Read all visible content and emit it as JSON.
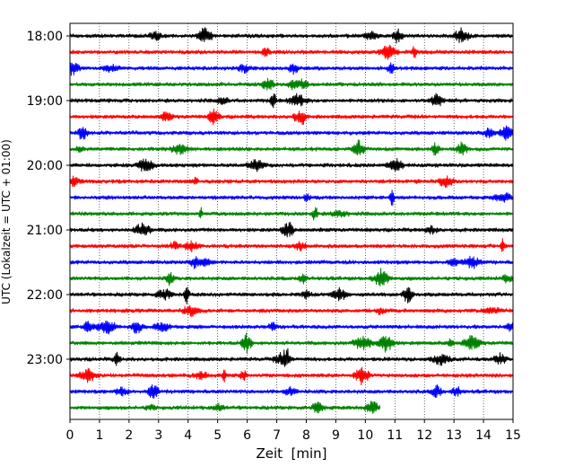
{
  "chart_data": {
    "type": "line",
    "title": "",
    "xlabel": "Zeit  [min]",
    "ylabel": "UTC (Lokalzeit = UTC + 01:00)",
    "xlim": [
      0,
      15
    ],
    "x_ticks": [
      "0",
      "1",
      "2",
      "3",
      "4",
      "5",
      "6",
      "7",
      "8",
      "9",
      "10",
      "11",
      "12",
      "13",
      "14",
      "15"
    ],
    "y_ticks": [
      {
        "label": "18:00",
        "row": 0
      },
      {
        "label": "19:00",
        "row": 4
      },
      {
        "label": "20:00",
        "row": 8
      },
      {
        "label": "21:00",
        "row": 12
      },
      {
        "label": "22:00",
        "row": 16
      },
      {
        "label": "23:00",
        "row": 20
      }
    ],
    "grid": "vertical dotted",
    "colors": [
      "#000000",
      "#ff0000",
      "#0000ff",
      "#008000"
    ],
    "series": [
      {
        "start": "18:00",
        "duration_min": 15,
        "color": "#000000"
      },
      {
        "start": "18:15",
        "duration_min": 15,
        "color": "#ff0000"
      },
      {
        "start": "18:30",
        "duration_min": 15,
        "color": "#0000ff"
      },
      {
        "start": "18:45",
        "duration_min": 15,
        "color": "#008000"
      },
      {
        "start": "19:00",
        "duration_min": 15,
        "color": "#000000"
      },
      {
        "start": "19:15",
        "duration_min": 15,
        "color": "#ff0000"
      },
      {
        "start": "19:30",
        "duration_min": 15,
        "color": "#0000ff"
      },
      {
        "start": "19:45",
        "duration_min": 15,
        "color": "#008000"
      },
      {
        "start": "20:00",
        "duration_min": 15,
        "color": "#000000"
      },
      {
        "start": "20:15",
        "duration_min": 15,
        "color": "#ff0000"
      },
      {
        "start": "20:30",
        "duration_min": 15,
        "color": "#0000ff"
      },
      {
        "start": "20:45",
        "duration_min": 15,
        "color": "#008000"
      },
      {
        "start": "21:00",
        "duration_min": 15,
        "color": "#000000"
      },
      {
        "start": "21:15",
        "duration_min": 15,
        "color": "#ff0000"
      },
      {
        "start": "21:30",
        "duration_min": 15,
        "color": "#0000ff"
      },
      {
        "start": "21:45",
        "duration_min": 15,
        "color": "#008000"
      },
      {
        "start": "22:00",
        "duration_min": 15,
        "color": "#000000"
      },
      {
        "start": "22:15",
        "duration_min": 15,
        "color": "#ff0000"
      },
      {
        "start": "22:30",
        "duration_min": 15,
        "color": "#0000ff"
      },
      {
        "start": "22:45",
        "duration_min": 15,
        "color": "#008000"
      },
      {
        "start": "23:00",
        "duration_min": 15,
        "color": "#000000"
      },
      {
        "start": "23:15",
        "duration_min": 15,
        "color": "#ff0000"
      },
      {
        "start": "23:30",
        "duration_min": 15,
        "color": "#0000ff"
      },
      {
        "start": "23:45",
        "duration_min": 10.5,
        "color": "#008000"
      }
    ]
  }
}
